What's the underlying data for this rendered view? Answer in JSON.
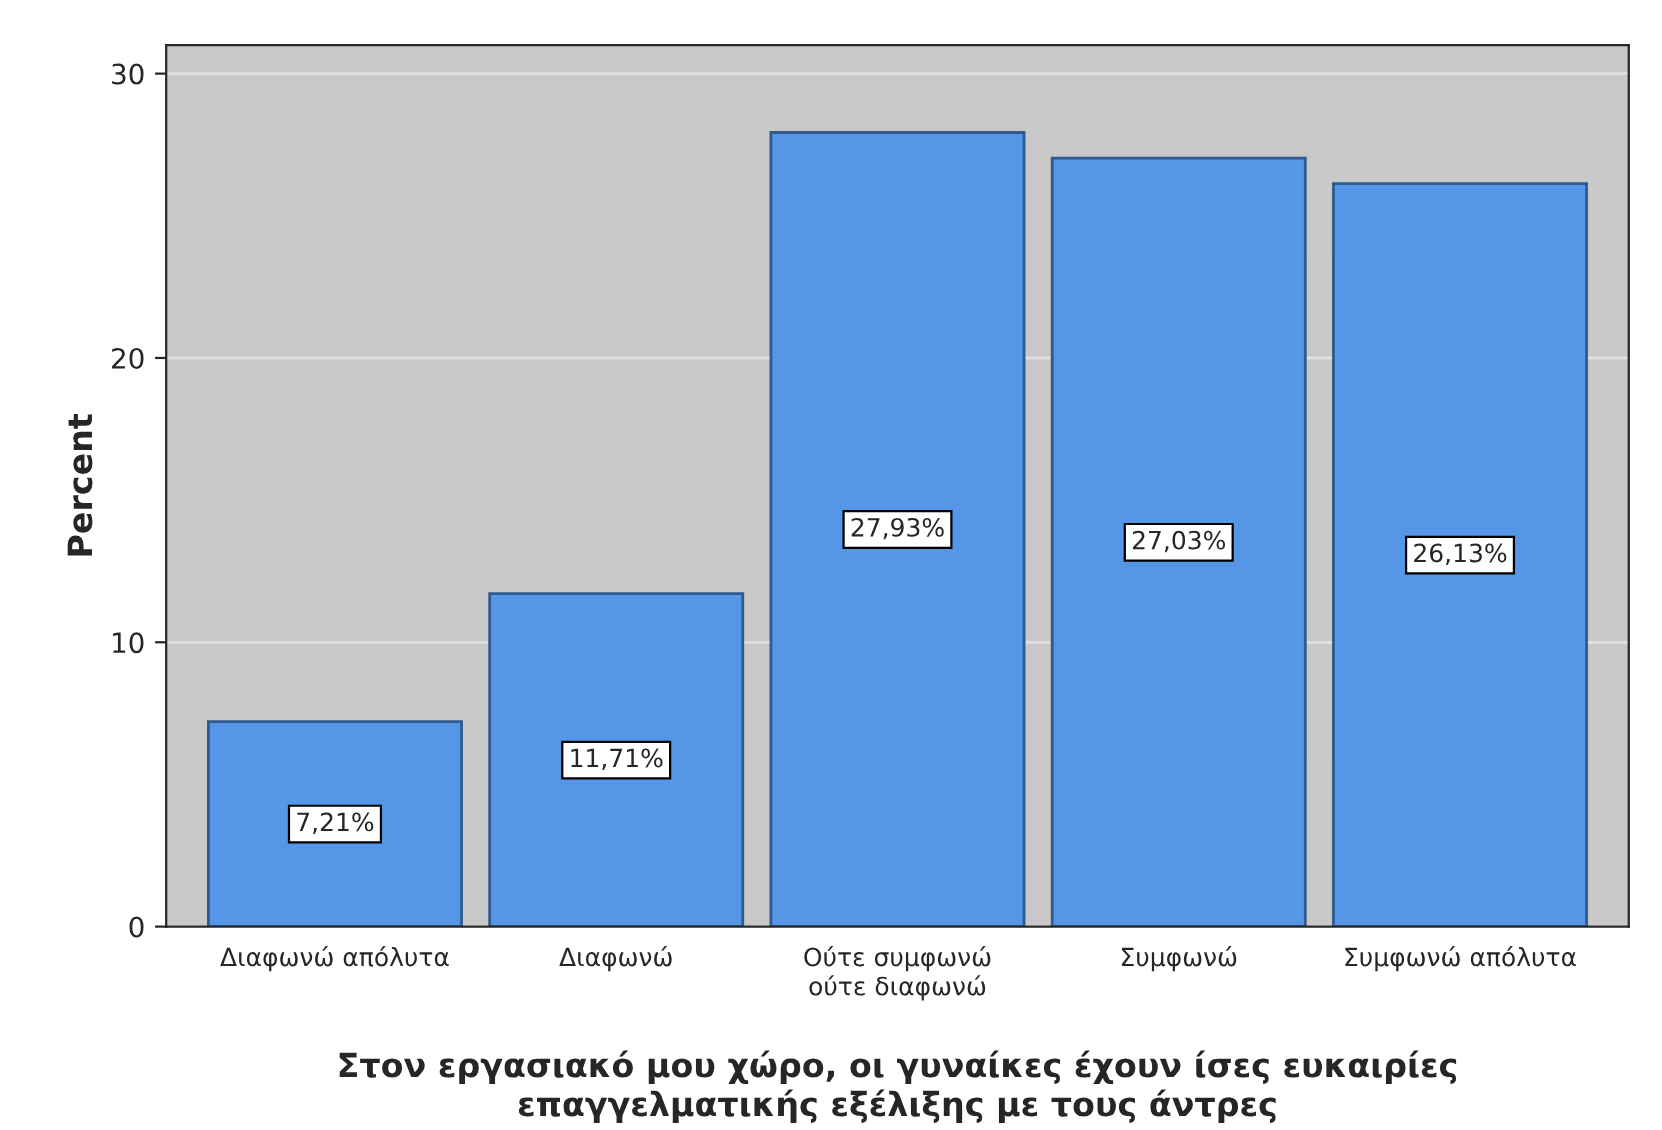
{
  "chart_data": {
    "type": "bar",
    "xlabel": "Στον εργασιακό μου χώρο, οι γυναίκες έχουν ίσες ευκαιρίες\nεπαγγελματικής εξέλιξης με τους άντρες",
    "ylabel": "Percent",
    "categories": [
      "Διαφωνώ απόλυτα",
      "Διαφωνώ",
      "Ούτε συμφωνώ\nούτε διαφωνώ",
      "Συμφωνώ",
      "Συμφωνώ απόλυτα"
    ],
    "values": [
      7.21,
      11.71,
      27.93,
      27.03,
      26.13
    ],
    "value_labels": [
      "7,21%",
      "11,71%",
      "27,93%",
      "27,03%",
      "26,13%"
    ],
    "color": "#5596e6",
    "ylim": [
      0,
      31
    ],
    "yticks": [
      0,
      10,
      20,
      30
    ],
    "grid": "y"
  }
}
